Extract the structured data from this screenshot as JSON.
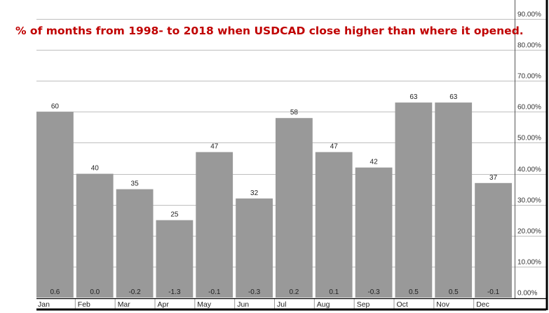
{
  "chart_data": {
    "type": "bar",
    "title": "% of months from 1998- to 2018 when USDCAD close higher than where it  opened.",
    "categories": [
      "Jan",
      "Feb",
      "Mar",
      "Apr",
      "May",
      "Jun",
      "Jul",
      "Aug",
      "Sep",
      "Oct",
      "Nov",
      "Dec"
    ],
    "values": [
      60,
      40,
      35,
      25,
      47,
      32,
      58,
      47,
      42,
      63,
      63,
      37
    ],
    "bottom_labels": [
      "0.6",
      "0.0",
      "-0.2",
      "-1.3",
      "-0.1",
      "-0.3",
      "0.2",
      "0.1",
      "-0.3",
      "0.5",
      "0.5",
      "-0.1"
    ],
    "y_ticks": [
      "0.00%",
      "10.00%",
      "20.00%",
      "30.00%",
      "40.00%",
      "50.00%",
      "60.00%",
      "70.00%",
      "80.00%",
      "90.00%"
    ],
    "ylim": [
      0,
      90
    ],
    "xlabel": "",
    "ylabel": "",
    "grid": true,
    "y_axis_side": "right",
    "colors": {
      "bar": "#999999",
      "grid": "#bfbfbf",
      "title": "#c00000",
      "axis": "#000000"
    }
  }
}
